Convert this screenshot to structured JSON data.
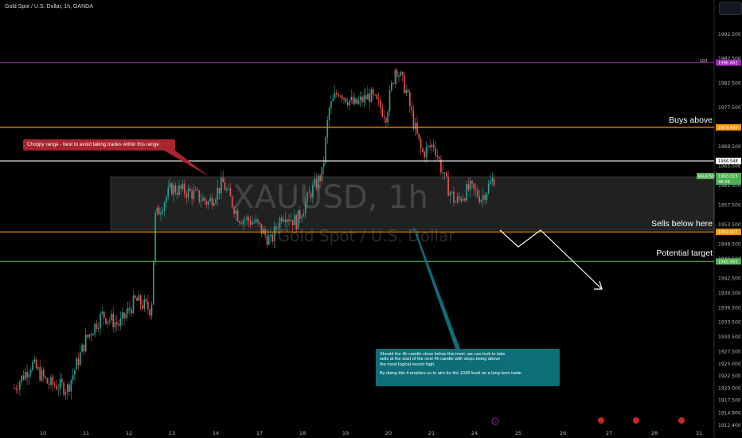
{
  "title": "Gold Spot / U.S. Dollar, 1h, OANDA",
  "watermark": {
    "symbol": "XAUUSD, 1h",
    "name": "Gold Spot / U.S. Dollar"
  },
  "price_axis": {
    "ticks": [
      "1992.500",
      "1987.500",
      "1982.500",
      "1977.500",
      "1973.500",
      "1969.500",
      "1965.500",
      "1961.500",
      "1957.500",
      "1953.500",
      "1949.500",
      "1946.500",
      "1942.500",
      "1939.500",
      "1936.500",
      "1933.500",
      "1930.500",
      "1927.500",
      "1925.000",
      "1922.500",
      "1920.000",
      "1917.500",
      "1914.900",
      "1912.400"
    ],
    "tick_values": [
      1992.5,
      1987.5,
      1982.5,
      1977.5,
      1973.5,
      1969.5,
      1965.5,
      1961.5,
      1957.5,
      1953.5,
      1949.5,
      1946.5,
      1942.5,
      1939.5,
      1936.5,
      1933.5,
      1930.5,
      1927.5,
      1925.0,
      1922.5,
      1920.0,
      1917.5,
      1914.9,
      1912.4
    ]
  },
  "time_axis": {
    "labels": [
      "10",
      "11",
      "12",
      "13",
      "14",
      "17",
      "18",
      "19",
      "20",
      "21",
      "24",
      "25",
      "26",
      "27",
      "28",
      "31"
    ]
  },
  "levels": [
    {
      "name": "low-line",
      "price": 1986.682,
      "label": "",
      "tag": "1986.682",
      "color": "#9c27b0",
      "side_text": "LOI"
    },
    {
      "name": "buys-above",
      "price": 1973.433,
      "label": "Buys above",
      "tag": "1973.433",
      "color": "#ff9800"
    },
    {
      "name": "white-level",
      "price": 1966.548,
      "label": "",
      "tag": "1966.548",
      "color": "#ffffff"
    },
    {
      "name": "sells-below",
      "price": 1952.015,
      "label": "Sells below here",
      "tag": "1952.015",
      "color": "#ff9800"
    },
    {
      "name": "potential-target",
      "price": 1945.955,
      "label": "Potential target",
      "tag": "1945.955",
      "color": "#4caf50"
    }
  ],
  "current_price": {
    "symbol": "XAUUSD",
    "price": "1963.015",
    "countdown": "46:09",
    "color": "#4caf50"
  },
  "annotations": {
    "choppy": "Choppy range - best to avoid taking trades within this range",
    "teal_line1": "Should the 4h candle close below this level, we can look to take",
    "teal_line2": "sells at the start of the next 4h candle with stops being above",
    "teal_line3": "the most logical recent high.",
    "teal_line4": "By doing this it enables us to aim for the 1938 level on a long term trade"
  },
  "chart_data": {
    "type": "candlestick",
    "symbol": "XAUUSD",
    "timeframe": "1h",
    "ylim": [
      1912.4,
      1995.0
    ],
    "x_dates": [
      "10",
      "11",
      "12",
      "13",
      "14",
      "17",
      "18",
      "19",
      "20",
      "21",
      "24"
    ],
    "close_path": [
      [
        "10",
        1920
      ],
      [
        "10.5",
        1925
      ],
      [
        "11",
        1930
      ],
      [
        "11.5",
        1933
      ],
      [
        "12",
        1936
      ],
      [
        "12.5",
        1938
      ],
      [
        "13",
        1955
      ],
      [
        "13.5",
        1960
      ],
      [
        "14",
        1961
      ],
      [
        "14.5",
        1959
      ],
      [
        "17",
        1955
      ],
      [
        "17.5",
        1955
      ],
      [
        "18",
        1966
      ],
      [
        "18.5",
        1980
      ],
      [
        "19",
        1977
      ],
      [
        "19.5",
        1977
      ],
      [
        "20",
        1987
      ],
      [
        "20.5",
        1980
      ],
      [
        "21",
        1972
      ],
      [
        "21.5",
        1962
      ],
      [
        "24",
        1963
      ]
    ],
    "range_box": {
      "from": "12.6",
      "to": "24.5",
      "top": 1963.015,
      "bottom": 1952.015
    }
  }
}
